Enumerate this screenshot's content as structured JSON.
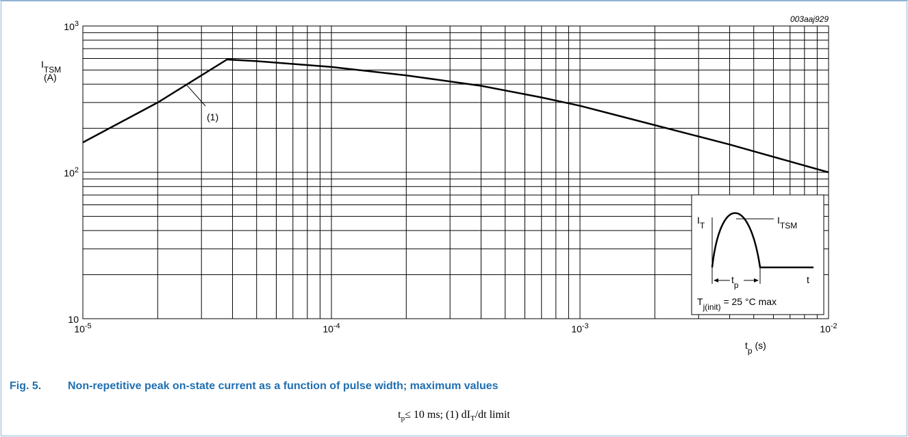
{
  "chart_data": {
    "type": "line",
    "figure_id": "003aaj929",
    "y_scale": "log",
    "x_scale": "log",
    "xlim": [
      1e-05,
      0.01
    ],
    "ylim": [
      10,
      1000
    ],
    "grid": true,
    "ylabel": {
      "main": "I",
      "sub": "TSM",
      "unit": "(A)"
    },
    "xlabel": {
      "main": "t",
      "sub": "p",
      "unit": "(s)"
    },
    "x_ticks": [
      {
        "base": "10",
        "exp": "-5",
        "value": 1e-05
      },
      {
        "base": "10",
        "exp": "-4",
        "value": 0.0001
      },
      {
        "base": "10",
        "exp": "-3",
        "value": 0.001
      },
      {
        "base": "10",
        "exp": "-2",
        "value": 0.01
      }
    ],
    "y_ticks": [
      {
        "base": "10",
        "exp": "",
        "value": 10
      },
      {
        "base": "10",
        "exp": "2",
        "value": 100
      },
      {
        "base": "10",
        "exp": "3",
        "value": 1000
      }
    ],
    "series": [
      {
        "x": [
          1e-05,
          2e-05,
          3e-05,
          3.8e-05,
          5e-05,
          0.0001,
          0.0002,
          0.0004,
          0.0007,
          0.001,
          0.002,
          0.004,
          0.01
        ],
        "y": [
          160,
          300,
          460,
          590,
          575,
          525,
          460,
          390,
          325,
          285,
          210,
          155,
          100
        ]
      }
    ],
    "annotation": {
      "label": "(1)",
      "x": 2.6e-05,
      "y": 400
    },
    "inset": {
      "it_label": {
        "main": "I",
        "sub": "T"
      },
      "itsm_label": {
        "main": "I",
        "sub": "TSM"
      },
      "t_label": "t",
      "tp_label": {
        "main": "t",
        "sub": "p"
      },
      "condition": {
        "main": "T",
        "sub": "j(init)",
        "rest": " = 25 °C max"
      }
    }
  },
  "caption": {
    "number": "Fig. 5.",
    "title": "Non-repetitive peak on-state current as a function of pulse width; maximum values"
  },
  "note": {
    "t": "t",
    "p": "p",
    "rest": "≤ 10 ms;   (1)   dI",
    "T": "T",
    "tail": "/dt  limit"
  }
}
